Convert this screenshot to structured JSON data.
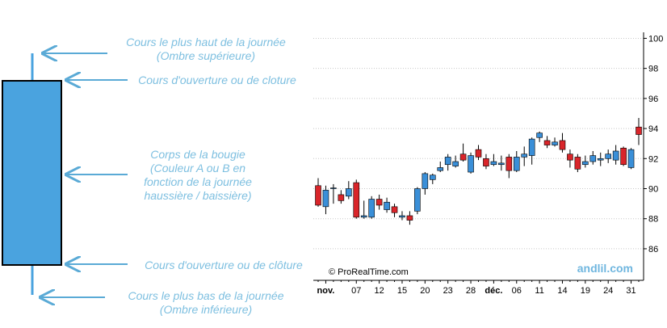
{
  "diagram": {
    "labels": [
      [
        "Cours le plus haut de la journée",
        "(Ombre supérieure)"
      ],
      [
        "Cours d'ouverture ou de cloture"
      ],
      [
        "Corps de la bougie",
        "(Couleur A ou B en",
        "fonction de la journée",
        "haussière / baissière)"
      ],
      [
        "Cours d'ouverture ou de clôture"
      ],
      [
        "Cours le plus bas de la journée",
        "(Ombre inférieure)"
      ]
    ]
  },
  "chart_data": {
    "type": "candlestick",
    "credits": [
      "© ProRealTime.com",
      "andlil.com"
    ],
    "categories": [
      null,
      "nov.",
      null,
      null,
      null,
      "07",
      null,
      null,
      "12",
      null,
      null,
      "15",
      null,
      null,
      "20",
      null,
      null,
      "23",
      null,
      null,
      "28",
      null,
      null,
      "déc.",
      null,
      null,
      "06",
      null,
      null,
      "11",
      null,
      null,
      "14",
      null,
      null,
      "19",
      null,
      null,
      "24",
      null,
      null,
      "31",
      null
    ],
    "open": [
      90.2,
      88.8,
      90.0,
      89.6,
      89.5,
      90.4,
      88.1,
      88.1,
      89.3,
      88.6,
      88.8,
      88.1,
      88.2,
      88.5,
      90.0,
      90.6,
      91.2,
      91.6,
      91.5,
      92.3,
      91.1,
      92.6,
      92.0,
      91.6,
      91.6,
      92.1,
      91.2,
      92.1,
      92.2,
      93.4,
      93.2,
      92.9,
      93.2,
      92.3,
      92.1,
      91.6,
      91.8,
      91.9,
      92.0,
      91.9,
      92.7,
      91.4,
      94.1
    ],
    "high": [
      90.7,
      90.2,
      90.3,
      89.9,
      90.5,
      90.6,
      89.2,
      89.5,
      89.6,
      89.4,
      89.0,
      88.5,
      88.5,
      90.1,
      91.1,
      91.0,
      91.8,
      92.3,
      92.2,
      93.0,
      92.4,
      92.9,
      92.3,
      92.3,
      92.2,
      92.3,
      92.5,
      92.8,
      93.4,
      93.8,
      93.5,
      93.4,
      93.7,
      92.6,
      92.3,
      92.2,
      92.5,
      92.4,
      92.6,
      92.9,
      92.8,
      92.7,
      94.7
    ],
    "low": [
      88.8,
      88.3,
      89.0,
      89.0,
      89.3,
      88.0,
      88.0,
      88.0,
      88.6,
      88.4,
      88.1,
      87.9,
      87.6,
      88.3,
      89.6,
      90.3,
      91.1,
      91.2,
      91.4,
      91.8,
      91.0,
      91.9,
      91.3,
      91.5,
      91.2,
      90.7,
      91.1,
      91.5,
      91.6,
      93.1,
      92.7,
      92.8,
      92.4,
      91.4,
      91.1,
      91.4,
      91.6,
      91.5,
      91.7,
      91.6,
      91.5,
      91.3,
      92.9
    ],
    "close": [
      88.9,
      89.9,
      90.05,
      89.2,
      90.0,
      88.1,
      88.2,
      89.3,
      88.9,
      89.1,
      88.4,
      88.2,
      87.9,
      90.0,
      91.0,
      90.9,
      91.4,
      92.1,
      91.8,
      91.9,
      92.2,
      92.1,
      91.5,
      91.8,
      91.7,
      91.2,
      92.1,
      92.3,
      93.3,
      93.7,
      92.9,
      93.1,
      92.6,
      91.9,
      91.3,
      91.8,
      92.2,
      92.0,
      92.3,
      92.5,
      91.6,
      92.6,
      93.6
    ],
    "up_color": "#3a8fd8",
    "down_color": "#d9252a",
    "ylim": [
      83.9,
      100.4
    ],
    "yticks": [
      86,
      88,
      90,
      92,
      94,
      96,
      98,
      100
    ],
    "grid": true
  }
}
